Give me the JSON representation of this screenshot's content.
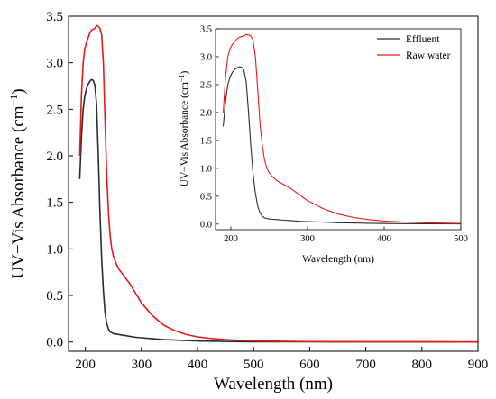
{
  "chart_data": [
    {
      "id": "main",
      "type": "line",
      "xlabel": "Wavelength (nm)",
      "ylabel": "UV−Vis Absorbance (cm",
      "ylabel_sup": "−1",
      "ylabel_close": ")",
      "xlim": [
        170,
        900
      ],
      "ylim": [
        -0.1,
        3.5
      ],
      "xticks": [
        200,
        300,
        400,
        500,
        600,
        700,
        800,
        900
      ],
      "yticks": [
        0.0,
        0.5,
        1.0,
        1.5,
        2.0,
        2.5,
        3.0,
        3.5
      ],
      "xtick_labels": [
        "200",
        "300",
        "400",
        "500",
        "600",
        "700",
        "800",
        "900"
      ],
      "ytick_labels": [
        "0.0",
        "0.5",
        "1.0",
        "1.5",
        "2.0",
        "2.5",
        "3.0",
        "3.5"
      ],
      "series": [
        {
          "name": "Effluent",
          "color": "#2b2b2b",
          "x": [
            190,
            193,
            196,
            199,
            202,
            205,
            208,
            211,
            214,
            217,
            220,
            223,
            226,
            229,
            232,
            235,
            238,
            241,
            244,
            247,
            250,
            255,
            260,
            270,
            280,
            290,
            300,
            320,
            340,
            360,
            380,
            400,
            450,
            500,
            600,
            700,
            800,
            900
          ],
          "y": [
            1.75,
            2.2,
            2.5,
            2.64,
            2.72,
            2.77,
            2.8,
            2.82,
            2.81,
            2.76,
            2.55,
            2.0,
            1.4,
            0.9,
            0.55,
            0.32,
            0.2,
            0.14,
            0.11,
            0.1,
            0.09,
            0.085,
            0.08,
            0.07,
            0.06,
            0.05,
            0.045,
            0.035,
            0.025,
            0.02,
            0.015,
            0.01,
            0.005,
            0.003,
            0.002,
            0.001,
            0.001,
            0.0
          ]
        },
        {
          "name": "Raw water",
          "color": "#e8191a",
          "x": [
            190,
            193,
            196,
            199,
            202,
            205,
            208,
            211,
            214,
            217,
            220,
            223,
            226,
            229,
            232,
            235,
            238,
            241,
            244,
            247,
            250,
            255,
            260,
            265,
            270,
            280,
            290,
            300,
            320,
            340,
            360,
            380,
            400,
            420,
            450,
            500,
            550,
            600,
            700,
            800,
            900
          ],
          "y": [
            2.0,
            2.65,
            3.0,
            3.15,
            3.22,
            3.27,
            3.32,
            3.35,
            3.36,
            3.37,
            3.4,
            3.39,
            3.37,
            3.3,
            3.0,
            2.4,
            1.8,
            1.4,
            1.15,
            1.0,
            0.92,
            0.84,
            0.78,
            0.74,
            0.7,
            0.62,
            0.52,
            0.42,
            0.28,
            0.18,
            0.12,
            0.08,
            0.055,
            0.04,
            0.025,
            0.012,
            0.007,
            0.004,
            0.002,
            0.001,
            0.0
          ]
        }
      ]
    },
    {
      "id": "inset",
      "type": "line",
      "xlabel": "Wavelength (nm)",
      "ylabel": "UV−Vis Absorbance (cm",
      "ylabel_sup": "−1",
      "ylabel_close": ")",
      "xlim": [
        180,
        500
      ],
      "ylim": [
        -0.1,
        3.5
      ],
      "xticks": [
        200,
        300,
        400,
        500
      ],
      "yticks": [
        0.0,
        0.5,
        1.0,
        1.5,
        2.0,
        2.5,
        3.0,
        3.5
      ],
      "xtick_labels": [
        "200",
        "300",
        "400",
        "500"
      ],
      "ytick_labels": [
        "0.0",
        "0.5",
        "1.0",
        "1.5",
        "2.0",
        "2.5",
        "3.0",
        "3.5"
      ],
      "legend": [
        "Effluent",
        "Raw water"
      ],
      "legend_position": "top-right",
      "series_ref": "main"
    }
  ]
}
